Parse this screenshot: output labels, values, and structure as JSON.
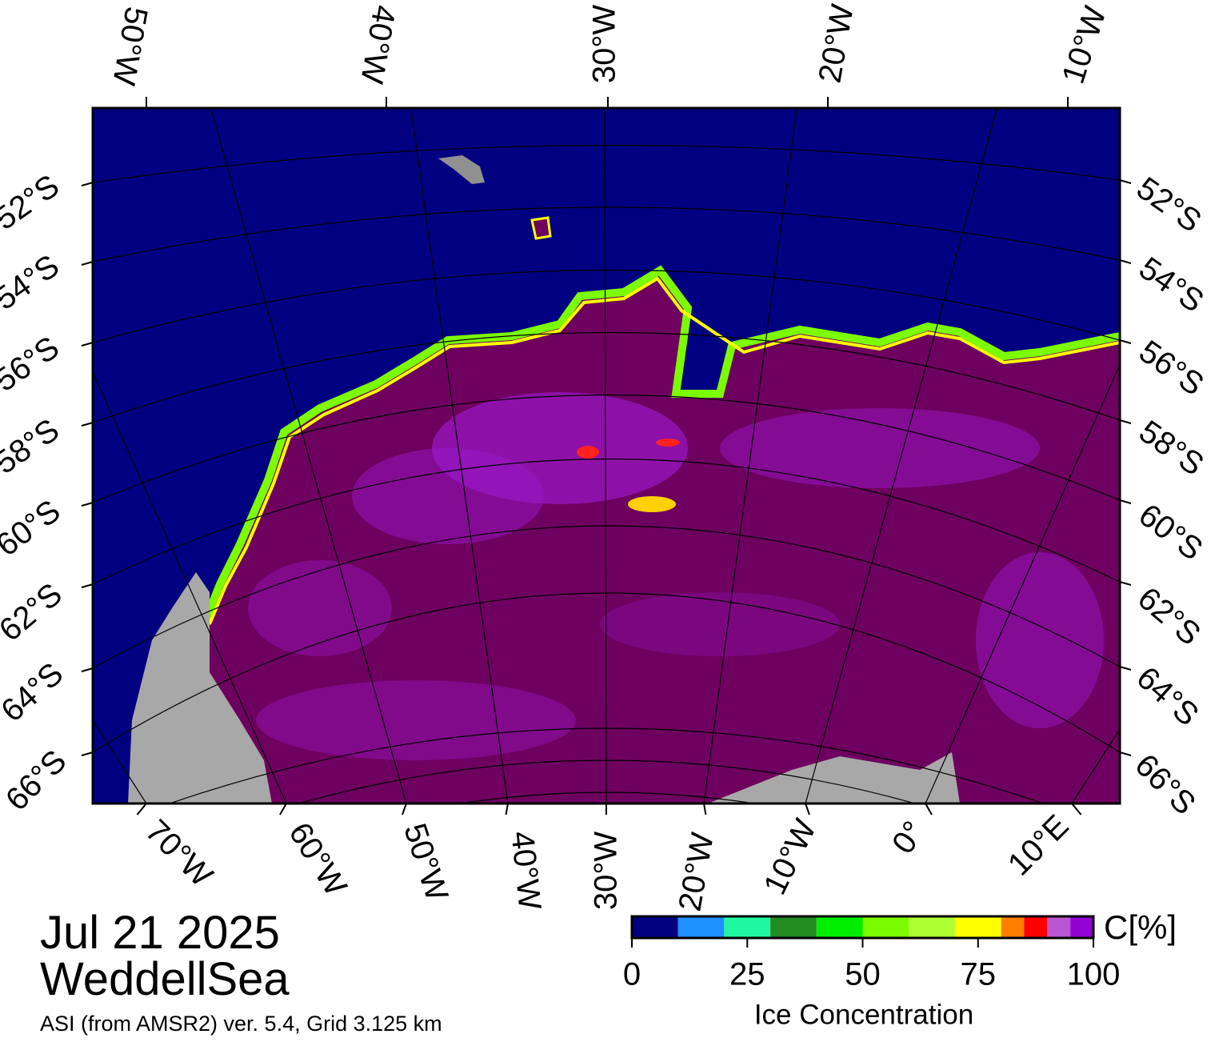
{
  "map": {
    "top_lon_labels": [
      "50°W",
      "40°W",
      "30°W",
      "20°W",
      "10°W"
    ],
    "left_lat_labels": [
      "52°S",
      "54°S",
      "56°S",
      "58°S",
      "60°S",
      "62°S",
      "64°S",
      "66°S"
    ],
    "right_lat_labels": [
      "52°S",
      "54°S",
      "56°S",
      "58°S",
      "60°S",
      "62°S",
      "64°S",
      "66°S"
    ],
    "bottom_lon_labels": [
      "70°W",
      "60°W",
      "50°W",
      "40°W",
      "30°W",
      "20°W",
      "10°W",
      "0°",
      "10°E"
    ]
  },
  "caption": {
    "date": "Jul 21 2025",
    "region": "WeddellSea",
    "source": "ASI (from AMSR2) ver. 5.4,  Grid 3.125 km"
  },
  "colorbar": {
    "unit_label": "C[%]",
    "title": "Ice Concentration",
    "range": [
      0,
      100
    ],
    "ticks": [
      0,
      25,
      50,
      75,
      100
    ],
    "bins": [
      0,
      10,
      20,
      30,
      40,
      50,
      60,
      70,
      80,
      85,
      90,
      95,
      100
    ],
    "colors": [
      "#000080",
      "#1e90ff",
      "#20f8a0",
      "#228b22",
      "#00ee00",
      "#7cfc00",
      "#adff2f",
      "#ffff00",
      "#ff8000",
      "#ff0000",
      "#ba55d3",
      "#9400d3"
    ]
  }
}
